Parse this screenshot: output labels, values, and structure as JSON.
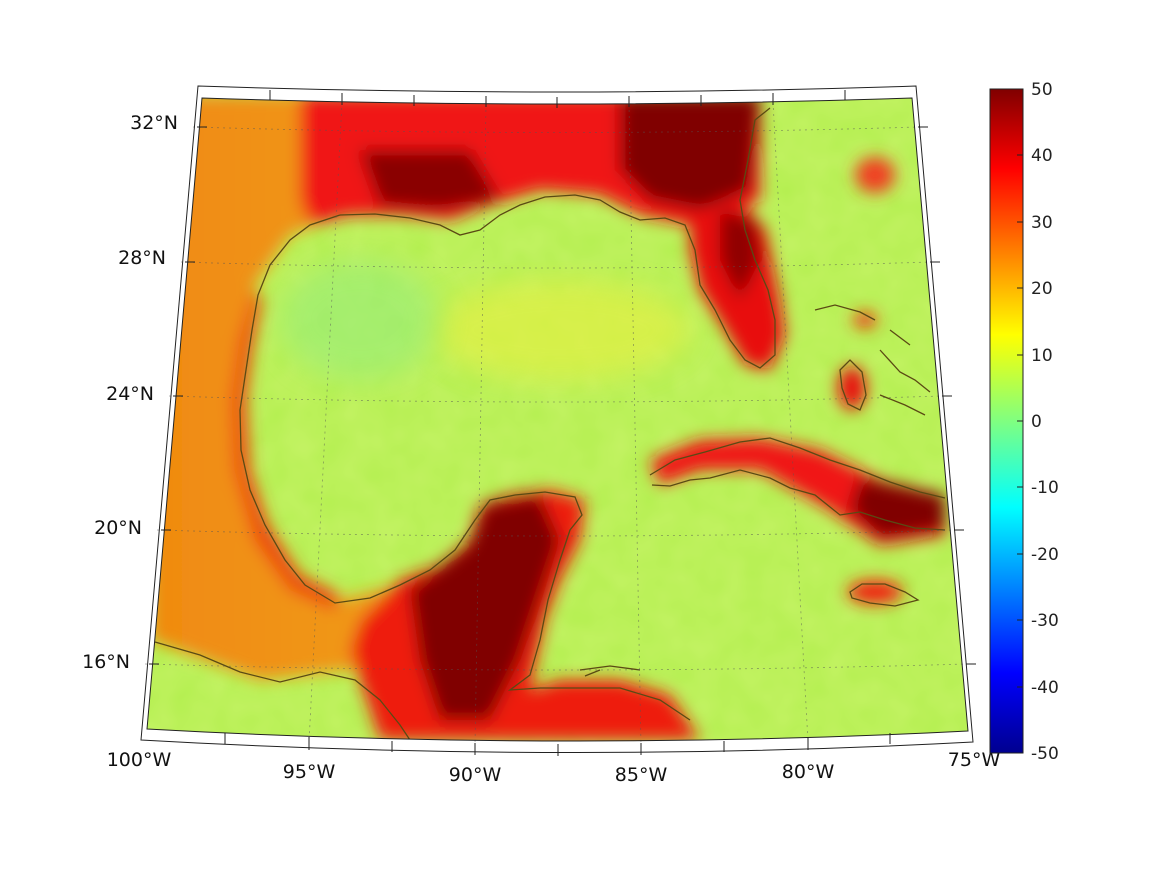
{
  "map": {
    "lon_labels": [
      "100°W",
      "95°W",
      "90°W",
      "85°W",
      "80°W",
      "75°W"
    ],
    "lat_labels": [
      "32°N",
      "28°N",
      "24°N",
      "20°N",
      "16°N"
    ],
    "colors": {
      "land_high": "#800000",
      "land_mid": "#e81010",
      "ocean": "#b0f04a",
      "coast": "#5a4a10"
    }
  },
  "colorbar": {
    "min": -50,
    "max": 50,
    "tick_labels": [
      "50",
      "40",
      "30",
      "20",
      "10",
      "0",
      "-10",
      "-20",
      "-30",
      "-40",
      "-50"
    ],
    "colormap": "jet"
  }
}
